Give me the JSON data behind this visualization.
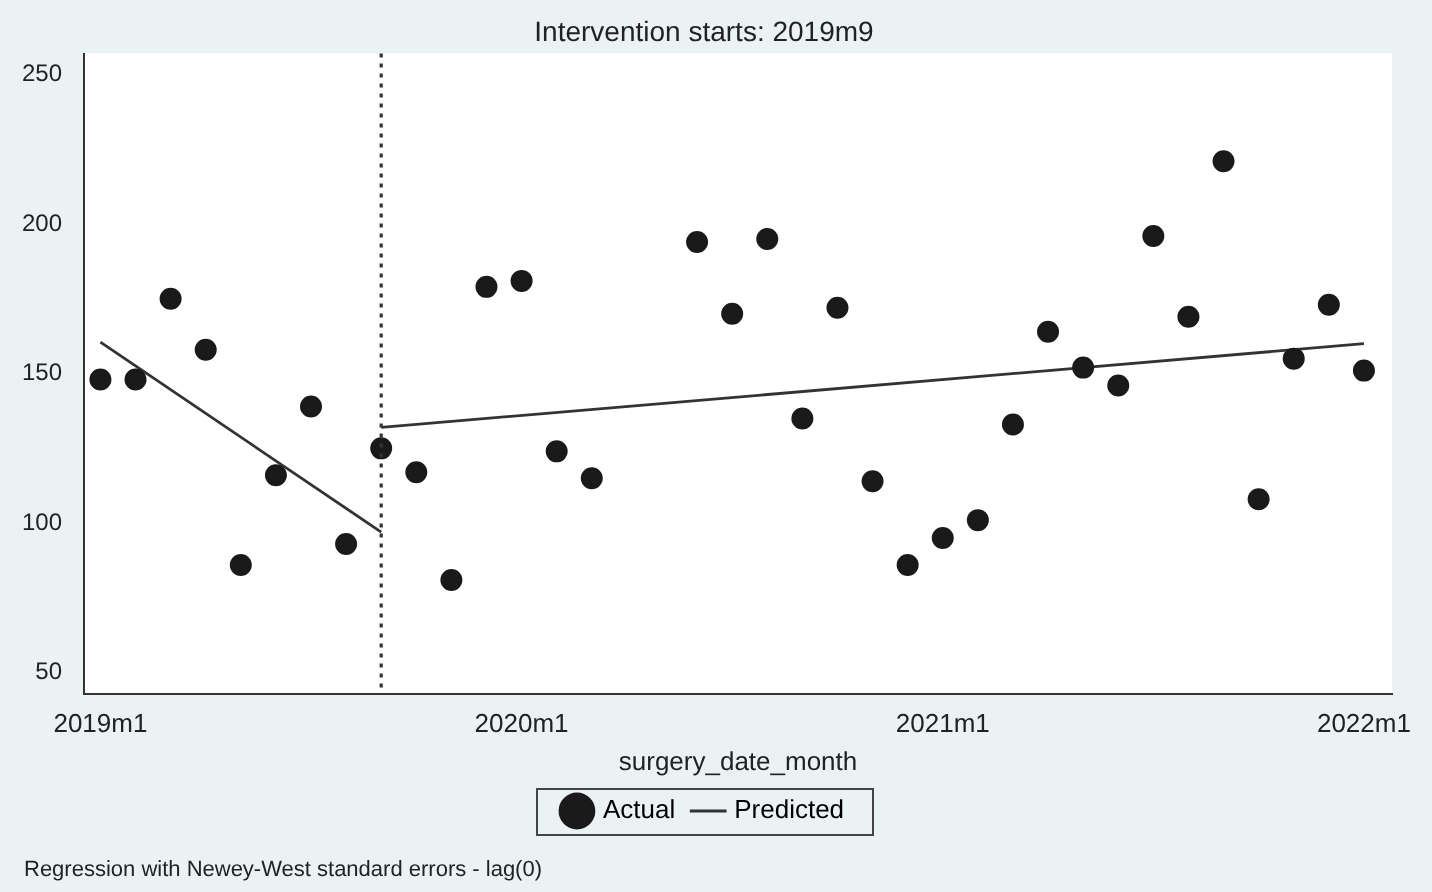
{
  "chart_data": {
    "type": "scatter",
    "title": "Intervention starts: 2019m9",
    "xlabel": "surgery_date_month",
    "xlim": [
      "2018-12-17",
      "2022-01-25"
    ],
    "xticks": [
      {
        "value": "2019-01",
        "label": "2019m1"
      },
      {
        "value": "2020-01",
        "label": "2020m1"
      },
      {
        "value": "2021-01",
        "label": "2021m1"
      },
      {
        "value": "2022-01",
        "label": "2022m1"
      }
    ],
    "ylim": [
      43,
      257
    ],
    "yticks": [
      50,
      100,
      150,
      200,
      250
    ],
    "grid": false,
    "legend": "bottom",
    "series": [
      {
        "name": "Actual",
        "type": "scatter",
        "marker": "circle",
        "color": "#1a1a1a",
        "x": [
          "2019-01",
          "2019-02",
          "2019-03",
          "2019-04",
          "2019-05",
          "2019-06",
          "2019-07",
          "2019-08",
          "2019-09",
          "2019-10",
          "2019-11",
          "2019-12",
          "2020-01",
          "2020-02",
          "2020-03",
          "2020-06",
          "2020-07",
          "2020-08",
          "2020-09",
          "2020-10",
          "2020-11",
          "2020-12",
          "2021-01",
          "2021-02",
          "2021-03",
          "2021-04",
          "2021-05",
          "2021-06",
          "2021-07",
          "2021-08",
          "2021-09",
          "2021-10",
          "2021-11",
          "2021-12",
          "2022-01"
        ],
        "values": [
          148,
          148,
          175,
          158,
          86,
          116,
          139,
          93,
          125,
          117,
          81,
          179,
          181,
          124,
          115,
          194,
          170,
          195,
          135,
          172,
          114,
          86,
          95,
          101,
          133,
          164,
          152,
          146,
          196,
          169,
          221,
          108,
          155,
          173,
          151
        ]
      },
      {
        "name": "Predicted",
        "type": "line",
        "marker": "none",
        "color": "#333333",
        "line_style": "solid",
        "x": [
          "2019-01",
          "2019-09"
        ],
        "values": [
          160.5,
          97
        ]
      },
      {
        "type": "line",
        "marker": "none",
        "color": "#333333",
        "line_style": "solid",
        "x": [
          "2019-09",
          "2022-01"
        ],
        "values": [
          132,
          160
        ]
      }
    ],
    "ref_lines": [
      {
        "axis": "x",
        "value": "2019-09",
        "color": "#333333",
        "line_style": "dotted"
      }
    ],
    "annotations": [
      "Regression with Newey-West standard errors - lag(0)"
    ]
  }
}
